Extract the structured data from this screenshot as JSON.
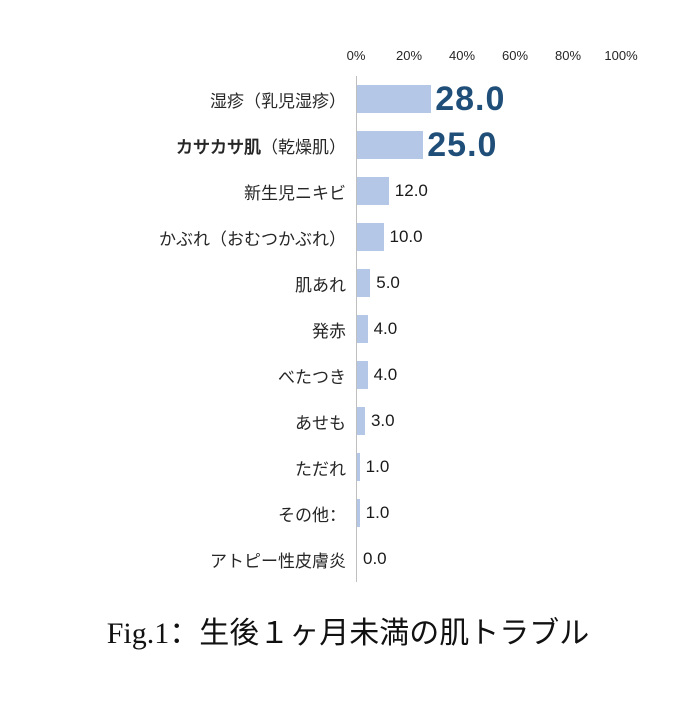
{
  "chart_data": {
    "type": "bar",
    "orientation": "horizontal",
    "unit": "%",
    "xlim": [
      0,
      100
    ],
    "x_ticks": [
      "0%",
      "20%",
      "40%",
      "60%",
      "80%",
      "100%"
    ],
    "grid": false,
    "legend": "none",
    "bar_color": "#b4c7e7",
    "emphasis_color": "#1f4e79",
    "categories": [
      {
        "label": "湿疹（乳児湿疹）",
        "value": 28.0,
        "emphasis": true
      },
      {
        "label_bold": "カサカサ肌",
        "label": "（乾燥肌）",
        "value": 25.0,
        "emphasis": true
      },
      {
        "label": "新生児ニキビ",
        "value": 12.0,
        "emphasis": false
      },
      {
        "label": "かぶれ（おむつかぶれ）",
        "value": 10.0,
        "emphasis": false
      },
      {
        "label": "肌あれ",
        "value": 5.0,
        "emphasis": false
      },
      {
        "label": "発赤",
        "value": 4.0,
        "emphasis": false
      },
      {
        "label": "べたつき",
        "value": 4.0,
        "emphasis": false
      },
      {
        "label": "あせも",
        "value": 3.0,
        "emphasis": false
      },
      {
        "label": "ただれ",
        "value": 1.0,
        "emphasis": false
      },
      {
        "label": "その他：",
        "value": 1.0,
        "emphasis": false
      },
      {
        "label": "アトピー性皮膚炎",
        "value": 0.0,
        "emphasis": false
      }
    ],
    "caption": "Fig.1：生後１ヶ月未満の肌トラブル"
  }
}
